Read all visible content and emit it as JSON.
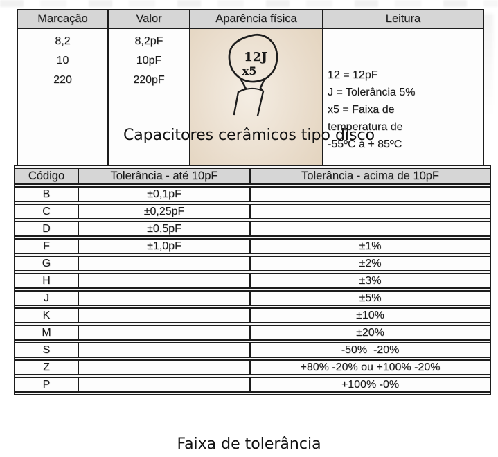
{
  "captions": {
    "table1": "Capacitores cerâmicos tipo disco",
    "table2": "Faixa de tolerância"
  },
  "marking_table": {
    "headers": [
      "Marcação",
      "Valor",
      "Aparência física",
      "Leitura"
    ],
    "markings": [
      "8,2",
      "10",
      "220"
    ],
    "values": [
      "8,2pF",
      "10pF",
      "220pF"
    ],
    "drawing": {
      "label_line1": "12J",
      "label_line2": "x5"
    },
    "leitura_lines": [
      "12 = 12pF",
      "J = Tolerância 5%",
      "x5 = Faixa de",
      "temperatura de",
      "-55ºC a + 85ºC"
    ]
  },
  "tolerance_table": {
    "headers": [
      "Código",
      "Tolerância - até 10pF",
      "Tolerância - acima de 10pF"
    ],
    "rows": [
      [
        "B",
        "±0,1pF",
        ""
      ],
      [
        "C",
        "±0,25pF",
        ""
      ],
      [
        "D",
        "±0,5pF",
        ""
      ],
      [
        "F",
        "±1,0pF",
        "±1%"
      ],
      [
        "G",
        "",
        "±2%"
      ],
      [
        "H",
        "",
        "±3%"
      ],
      [
        "J",
        "",
        "±5%"
      ],
      [
        "K",
        "",
        "±10%"
      ],
      [
        "M",
        "",
        "±20%"
      ],
      [
        "S",
        "",
        "-50%  -20%"
      ],
      [
        "Z",
        "",
        "+80% -20% ou +100% -20%"
      ],
      [
        "P",
        "",
        "+100% -0%"
      ]
    ]
  },
  "colors": {
    "border": "#1c1c1c",
    "text": "#1a1a1a",
    "header_bg": "#d6d6d6",
    "cell_bg": "#fdfdfd",
    "photo_bg": "#e9dccb",
    "page_bg": "#ffffff"
  }
}
